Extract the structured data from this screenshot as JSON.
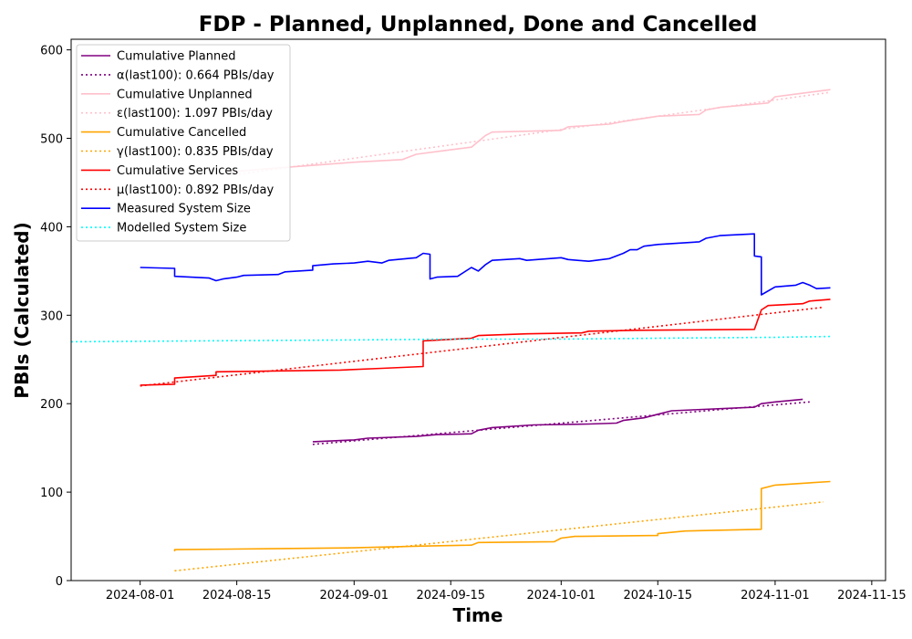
{
  "chart_data": {
    "type": "line",
    "title": "FDP - Planned, Unplanned, Done  and Cancelled",
    "xlabel": "Time",
    "ylabel": "PBIs (Calculated)",
    "xlim": [
      "2024-07-22",
      "2024-11-17"
    ],
    "ylim": [
      0,
      612
    ],
    "x_ticks": [
      "2024-08-01",
      "2024-08-15",
      "2024-09-01",
      "2024-09-15",
      "2024-10-01",
      "2024-10-15",
      "2024-11-01",
      "2024-11-15"
    ],
    "y_ticks": [
      0,
      100,
      200,
      300,
      400,
      500,
      600
    ],
    "grid": false,
    "legend_position": "top-left",
    "series": [
      {
        "name": "Cumulative Planned",
        "color": "#800080",
        "style": "solid",
        "points": [
          [
            "2024-08-26",
            157
          ],
          [
            "2024-09-01",
            159
          ],
          [
            "2024-09-03",
            161
          ],
          [
            "2024-09-10",
            163
          ],
          [
            "2024-09-13",
            165
          ],
          [
            "2024-09-18",
            166
          ],
          [
            "2024-09-19",
            170
          ],
          [
            "2024-09-21",
            173
          ],
          [
            "2024-09-27",
            176
          ],
          [
            "2024-10-05",
            177
          ],
          [
            "2024-10-09",
            178
          ],
          [
            "2024-10-10",
            181
          ],
          [
            "2024-10-13",
            184
          ],
          [
            "2024-10-15",
            188
          ],
          [
            "2024-10-17",
            192
          ],
          [
            "2024-10-20",
            193
          ],
          [
            "2024-10-29",
            196
          ],
          [
            "2024-10-30",
            200
          ],
          [
            "2024-11-01",
            202
          ],
          [
            "2024-11-05",
            205
          ]
        ]
      },
      {
        "name": "α(last100): 0.664 PBIs/day",
        "color": "#800080",
        "style": "dotted",
        "points": [
          [
            "2024-08-26",
            154
          ],
          [
            "2024-11-06",
            202
          ]
        ]
      },
      {
        "name": "Cumulative Unplanned",
        "color": "#ffc0cb",
        "style": "solid",
        "points": [
          [
            "2024-08-14",
            462
          ],
          [
            "2024-08-20",
            466
          ],
          [
            "2024-08-27",
            470
          ],
          [
            "2024-09-01",
            473
          ],
          [
            "2024-09-08",
            476
          ],
          [
            "2024-09-10",
            482
          ],
          [
            "2024-09-15",
            487
          ],
          [
            "2024-09-18",
            490
          ],
          [
            "2024-09-20",
            503
          ],
          [
            "2024-09-21",
            507
          ],
          [
            "2024-10-01",
            509
          ],
          [
            "2024-10-02",
            513
          ],
          [
            "2024-10-08",
            516
          ],
          [
            "2024-10-10",
            519
          ],
          [
            "2024-10-15",
            525
          ],
          [
            "2024-10-21",
            527
          ],
          [
            "2024-10-22",
            532
          ],
          [
            "2024-10-24",
            535
          ],
          [
            "2024-10-31",
            540
          ],
          [
            "2024-11-01",
            547
          ],
          [
            "2024-11-04",
            550
          ],
          [
            "2024-11-09",
            555
          ]
        ]
      },
      {
        "name": "ε(last100): 1.097 PBIs/day",
        "color": "#ffc0cb",
        "style": "dotted",
        "points": [
          [
            "2024-08-14",
            458
          ],
          [
            "2024-11-09",
            552
          ]
        ]
      },
      {
        "name": "Cumulative Cancelled",
        "color": "#ffa500",
        "style": "solid",
        "points": [
          [
            "2024-08-06",
            33
          ],
          [
            "2024-08-06",
            35
          ],
          [
            "2024-08-20",
            36
          ],
          [
            "2024-09-01",
            37
          ],
          [
            "2024-09-11",
            39
          ],
          [
            "2024-09-18",
            40
          ],
          [
            "2024-09-19",
            43
          ],
          [
            "2024-09-30",
            44
          ],
          [
            "2024-10-01",
            48
          ],
          [
            "2024-10-03",
            50
          ],
          [
            "2024-10-15",
            51
          ],
          [
            "2024-10-15",
            53
          ],
          [
            "2024-10-19",
            56
          ],
          [
            "2024-10-30",
            58
          ],
          [
            "2024-10-30",
            104
          ],
          [
            "2024-11-01",
            108
          ],
          [
            "2024-11-05",
            110
          ],
          [
            "2024-11-09",
            112
          ]
        ]
      },
      {
        "name": "γ(last100): 0.835 PBIs/day",
        "color": "#ffa500",
        "style": "dotted",
        "points": [
          [
            "2024-08-06",
            11
          ],
          [
            "2024-11-08",
            89
          ]
        ]
      },
      {
        "name": "Cumulative Services",
        "color": "#ff0000",
        "style": "solid",
        "points": [
          [
            "2024-08-01",
            221
          ],
          [
            "2024-08-06",
            222
          ],
          [
            "2024-08-06",
            229
          ],
          [
            "2024-08-12",
            232
          ],
          [
            "2024-08-12",
            236
          ],
          [
            "2024-08-30",
            238
          ],
          [
            "2024-09-05",
            240
          ],
          [
            "2024-09-11",
            242
          ],
          [
            "2024-09-11",
            271
          ],
          [
            "2024-09-18",
            274
          ],
          [
            "2024-09-19",
            277
          ],
          [
            "2024-09-26",
            279
          ],
          [
            "2024-10-04",
            280
          ],
          [
            "2024-10-05",
            282
          ],
          [
            "2024-10-12",
            283
          ],
          [
            "2024-10-29",
            284
          ],
          [
            "2024-10-30",
            306
          ],
          [
            "2024-10-31",
            311
          ],
          [
            "2024-11-05",
            313
          ],
          [
            "2024-11-06",
            316
          ],
          [
            "2024-11-09",
            318
          ]
        ]
      },
      {
        "name": "μ(last100): 0.892 PBIs/day",
        "color": "#ff0000",
        "style": "dotted",
        "points": [
          [
            "2024-08-01",
            220
          ],
          [
            "2024-11-08",
            309
          ]
        ]
      },
      {
        "name": "Measured System Size",
        "color": "#0000ff",
        "style": "solid",
        "points": [
          [
            "2024-08-01",
            354
          ],
          [
            "2024-08-06",
            353
          ],
          [
            "2024-08-06",
            344
          ],
          [
            "2024-08-11",
            342
          ],
          [
            "2024-08-12",
            339
          ],
          [
            "2024-08-13",
            341
          ],
          [
            "2024-08-15",
            343
          ],
          [
            "2024-08-16",
            345
          ],
          [
            "2024-08-21",
            346
          ],
          [
            "2024-08-22",
            349
          ],
          [
            "2024-08-26",
            351
          ],
          [
            "2024-08-26",
            356
          ],
          [
            "2024-08-29",
            358
          ],
          [
            "2024-09-01",
            359
          ],
          [
            "2024-09-03",
            361
          ],
          [
            "2024-09-05",
            359
          ],
          [
            "2024-09-06",
            362
          ],
          [
            "2024-09-10",
            365
          ],
          [
            "2024-09-11",
            370
          ],
          [
            "2024-09-12",
            369
          ],
          [
            "2024-09-12",
            341
          ],
          [
            "2024-09-13",
            343
          ],
          [
            "2024-09-16",
            344
          ],
          [
            "2024-09-18",
            354
          ],
          [
            "2024-09-19",
            350
          ],
          [
            "2024-09-20",
            357
          ],
          [
            "2024-09-21",
            362
          ],
          [
            "2024-09-25",
            364
          ],
          [
            "2024-09-26",
            362
          ],
          [
            "2024-10-01",
            365
          ],
          [
            "2024-10-02",
            363
          ],
          [
            "2024-10-05",
            361
          ],
          [
            "2024-10-08",
            364
          ],
          [
            "2024-10-10",
            370
          ],
          [
            "2024-10-11",
            374
          ],
          [
            "2024-10-12",
            374
          ],
          [
            "2024-10-13",
            378
          ],
          [
            "2024-10-15",
            380
          ],
          [
            "2024-10-21",
            383
          ],
          [
            "2024-10-22",
            387
          ],
          [
            "2024-10-24",
            390
          ],
          [
            "2024-10-29",
            392
          ],
          [
            "2024-10-29",
            367
          ],
          [
            "2024-10-30",
            366
          ],
          [
            "2024-10-30",
            323
          ],
          [
            "2024-11-01",
            332
          ],
          [
            "2024-11-04",
            334
          ],
          [
            "2024-11-05",
            337
          ],
          [
            "2024-11-06",
            334
          ],
          [
            "2024-11-07",
            330
          ],
          [
            "2024-11-09",
            331
          ]
        ]
      },
      {
        "name": "Modelled System Size",
        "color": "#00ffff",
        "style": "dotted",
        "points": [
          [
            "2024-07-22",
            270
          ],
          [
            "2024-08-10",
            271
          ],
          [
            "2024-09-01",
            272
          ],
          [
            "2024-09-15",
            273
          ],
          [
            "2024-10-01",
            273
          ],
          [
            "2024-10-15",
            274
          ],
          [
            "2024-11-01",
            275
          ],
          [
            "2024-11-09",
            276
          ]
        ]
      }
    ]
  }
}
